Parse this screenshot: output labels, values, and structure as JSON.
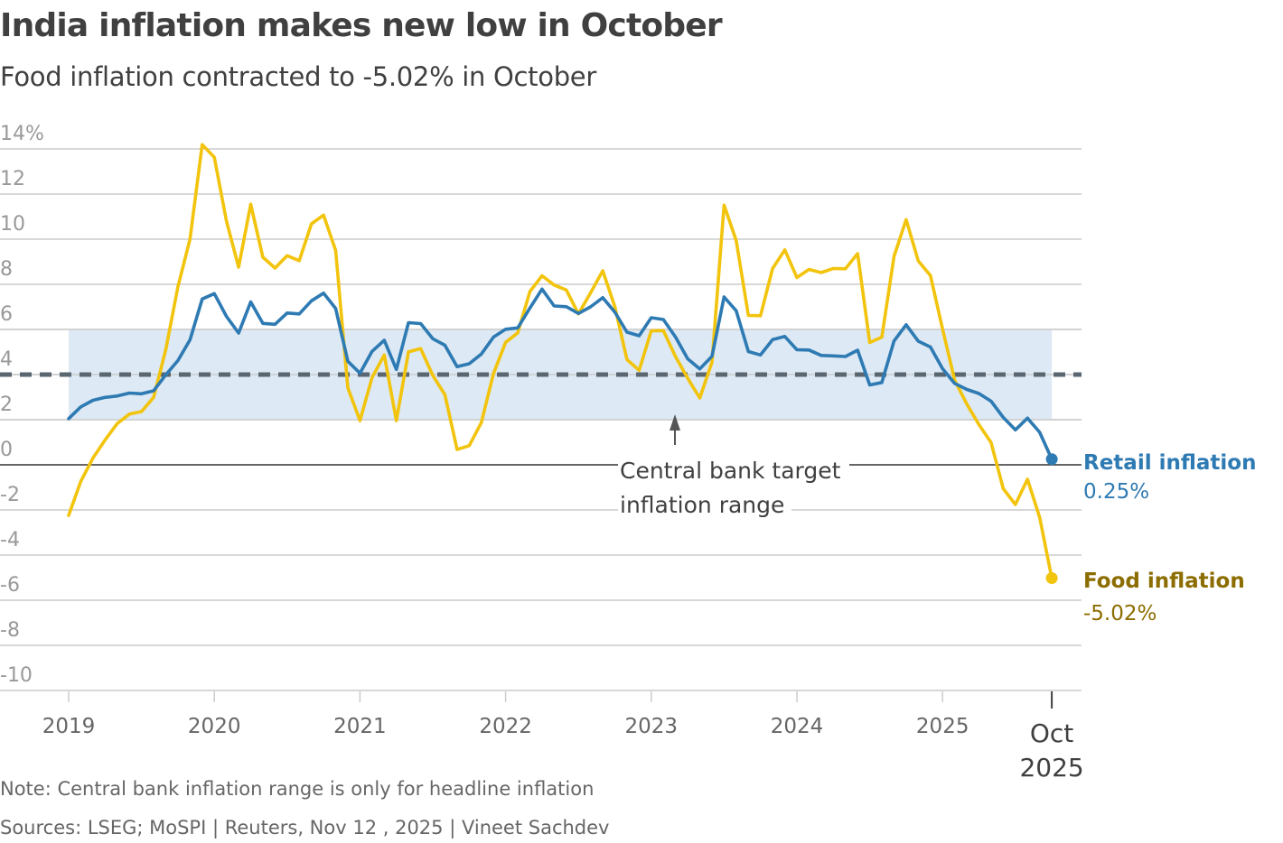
{
  "title": "India inflation makes new low in October",
  "subtitle": "Food inflation contracted to -5.02% in October",
  "note": "Note: Central bank inflation range is only for headline inflation",
  "sources": "Sources: LSEG; MoSPI | Reuters, Nov 12 , 2025 | Vineet Sachdev",
  "chart_data": {
    "type": "line",
    "title": "India inflation makes new low in October",
    "subtitle": "Food inflation contracted to -5.02% in October",
    "xlabel": "",
    "ylabel": "%",
    "ylim": [
      -10,
      14
    ],
    "yticks": [
      14,
      12,
      10,
      8,
      6,
      4,
      2,
      0,
      -2,
      -4,
      -6,
      -8,
      -10
    ],
    "ytick_labels": [
      "14%",
      "12",
      "10",
      "8",
      "6",
      "4",
      "2",
      "0",
      "-2",
      "-4",
      "-6",
      "-8",
      "-10"
    ],
    "grid": true,
    "x_start": "2019-01",
    "x_end": "2025-10",
    "xtick_labels": [
      "2019",
      "2020",
      "2021",
      "2022",
      "2023",
      "2024",
      "2025"
    ],
    "xtick_last": [
      "Oct",
      "2025"
    ],
    "target_range": {
      "low": 2,
      "high": 6,
      "midpoint": 4,
      "label_lines": [
        "Central bank target",
        "inflation range"
      ]
    },
    "colors": {
      "retail": "#2e7ab3",
      "food": "#f2c40d",
      "food_label": "#8c6d00",
      "band": "#dde9f4",
      "dashed": "#5a6670"
    },
    "series": [
      {
        "name": "Retail inflation",
        "end_label": "0.25%",
        "values": [
          2.05,
          2.57,
          2.86,
          2.99,
          3.05,
          3.18,
          3.15,
          3.28,
          3.99,
          4.62,
          5.54,
          7.35,
          7.59,
          6.58,
          5.84,
          7.22,
          6.27,
          6.23,
          6.73,
          6.69,
          7.27,
          7.61,
          6.93,
          4.59,
          4.06,
          5.03,
          5.52,
          4.23,
          6.3,
          6.26,
          5.59,
          5.3,
          4.35,
          4.48,
          4.91,
          5.66,
          6.01,
          6.07,
          6.95,
          7.79,
          7.04,
          7.01,
          6.71,
          7.0,
          7.41,
          6.77,
          5.88,
          5.72,
          6.52,
          6.44,
          5.66,
          4.7,
          4.25,
          4.81,
          7.44,
          6.83,
          5.02,
          4.87,
          5.55,
          5.69,
          5.1,
          5.09,
          4.85,
          4.83,
          4.8,
          5.08,
          3.54,
          3.65,
          5.49,
          6.21,
          5.48,
          5.22,
          4.26,
          3.61,
          3.34,
          3.16,
          2.82,
          2.1,
          1.55,
          2.07,
          1.44,
          0.25
        ]
      },
      {
        "name": "Food inflation",
        "end_label": "-5.02%",
        "values": [
          -2.24,
          -0.73,
          0.3,
          1.1,
          1.83,
          2.25,
          2.36,
          2.99,
          5.11,
          7.89,
          10.01,
          14.19,
          13.63,
          10.81,
          8.76,
          11.55,
          9.2,
          8.72,
          9.27,
          9.05,
          10.68,
          11.07,
          9.5,
          3.41,
          1.96,
          3.87,
          4.87,
          1.96,
          5.01,
          5.15,
          3.96,
          3.11,
          0.68,
          0.85,
          1.87,
          4.05,
          5.43,
          5.85,
          7.68,
          8.38,
          7.97,
          7.75,
          6.69,
          7.62,
          8.6,
          7.01,
          4.67,
          4.19,
          5.94,
          5.95,
          4.79,
          3.84,
          2.96,
          4.55,
          11.51,
          9.94,
          6.62,
          6.61,
          8.7,
          9.53,
          8.3,
          8.66,
          8.52,
          8.7,
          8.69,
          9.36,
          5.42,
          5.66,
          9.24,
          10.87,
          9.04,
          8.39,
          6.02,
          3.75,
          2.69,
          1.78,
          0.99,
          -1.06,
          -1.76,
          -0.64,
          -2.33,
          -5.02
        ]
      }
    ]
  }
}
